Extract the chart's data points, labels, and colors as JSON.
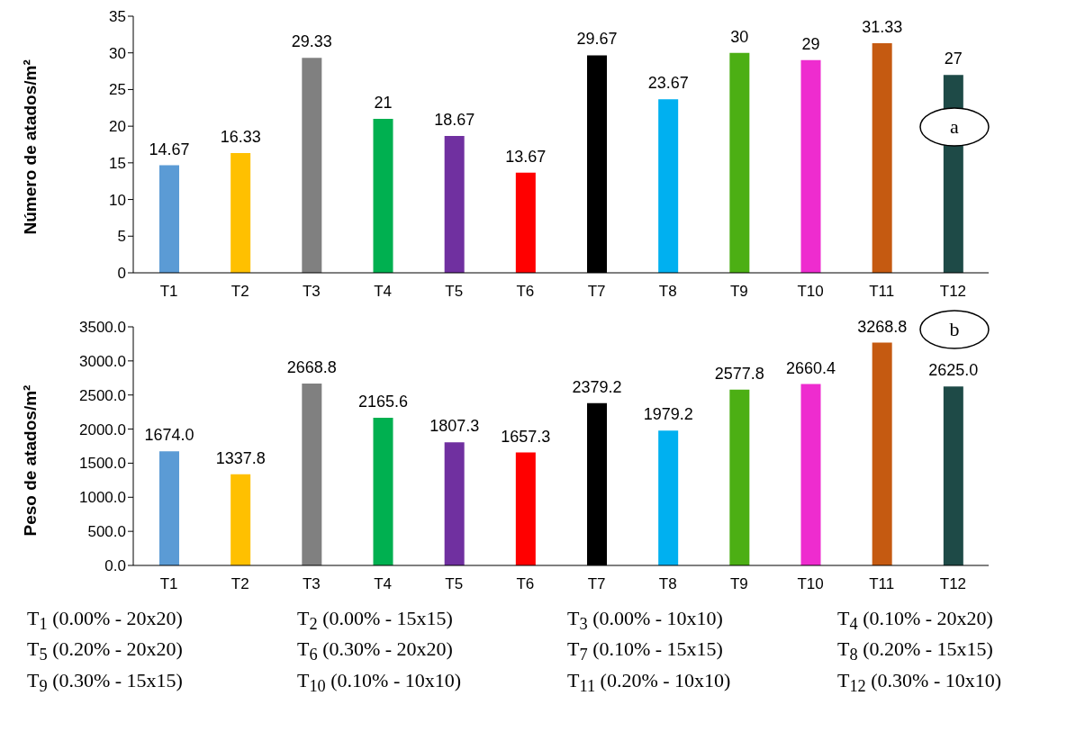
{
  "chart_data": [
    {
      "type": "bar",
      "ylabel": "Número de atados/m²",
      "categories": [
        "T1",
        "T2",
        "T3",
        "T4",
        "T5",
        "T6",
        "T7",
        "T8",
        "T9",
        "T10",
        "T11",
        "T12"
      ],
      "values": [
        14.67,
        16.33,
        29.33,
        21,
        18.67,
        13.67,
        29.67,
        23.67,
        30,
        29,
        31.33,
        27
      ],
      "colors": [
        "#5b9bd5",
        "#ffc000",
        "#808080",
        "#00b050",
        "#7030a0",
        "#ff0000",
        "#000000",
        "#00b0f0",
        "#4caf14",
        "#ee2ccf",
        "#c55a11",
        "#1e4a47"
      ],
      "ylim": [
        0,
        35
      ],
      "yticks": [
        0,
        5,
        10,
        15,
        20,
        25,
        30,
        35
      ],
      "grid": false,
      "data_labels": true,
      "annotations": [
        "a"
      ]
    },
    {
      "type": "bar",
      "ylabel": "Peso de atados/m²",
      "categories": [
        "T1",
        "T2",
        "T3",
        "T4",
        "T5",
        "T6",
        "T7",
        "T8",
        "T9",
        "T10",
        "T11",
        "T12"
      ],
      "values": [
        1674.0,
        1337.8,
        2668.8,
        2165.6,
        1807.3,
        1657.3,
        2379.2,
        1979.2,
        2577.8,
        2660.4,
        3268.8,
        2625.0
      ],
      "value_labels": [
        "1674.0",
        "1337.8",
        "2668.8",
        "2165.6",
        "1807.3",
        "1657.3",
        "2379.2",
        "1979.2",
        "2577.8",
        "2660.4",
        "3268.8",
        "2625.0"
      ],
      "colors": [
        "#5b9bd5",
        "#ffc000",
        "#808080",
        "#00b050",
        "#7030a0",
        "#ff0000",
        "#000000",
        "#00b0f0",
        "#4caf14",
        "#ee2ccf",
        "#c55a11",
        "#1e4a47"
      ],
      "ylim": [
        0,
        3500
      ],
      "yticks": [
        {
          "value": 0,
          "label": "0.0"
        },
        {
          "value": 500,
          "label": "500.0"
        },
        {
          "value": 1000,
          "label": "1000.0"
        },
        {
          "value": 1500,
          "label": "1500.0"
        },
        {
          "value": 2000,
          "label": "2000.0"
        },
        {
          "value": 2500,
          "label": "2500.0"
        },
        {
          "value": 3000,
          "label": "3000.0"
        },
        {
          "value": 3500,
          "label": "3500.0"
        }
      ],
      "grid": false,
      "annotations": [
        "b",
        "T$_{1}$ (0.00% - 20x20)",
        "T$_{2}$ (0.00% - 15x15)",
        "T$_{3}$ (0.00% - 10x10)",
        "T$_{4}$ (0.10% - 20x20)",
        "T$_{5}$ (0.20% - 20x20)",
        "T$_{6}$ (0.30% - 20x20)",
        "T$_{7}$ (0.10% - 15x15)",
        "T$_{8}$ (0.20% - 15x15)",
        "T$_{9}$ (0.30% - 15x15)",
        "T$_{10}$ (0.10% - 10x10)",
        "T$_{11}$ (0.20% - 10x10)",
        "T$_{12}$ (0.30% - 10x10)"
      ]
    }
  ]
}
